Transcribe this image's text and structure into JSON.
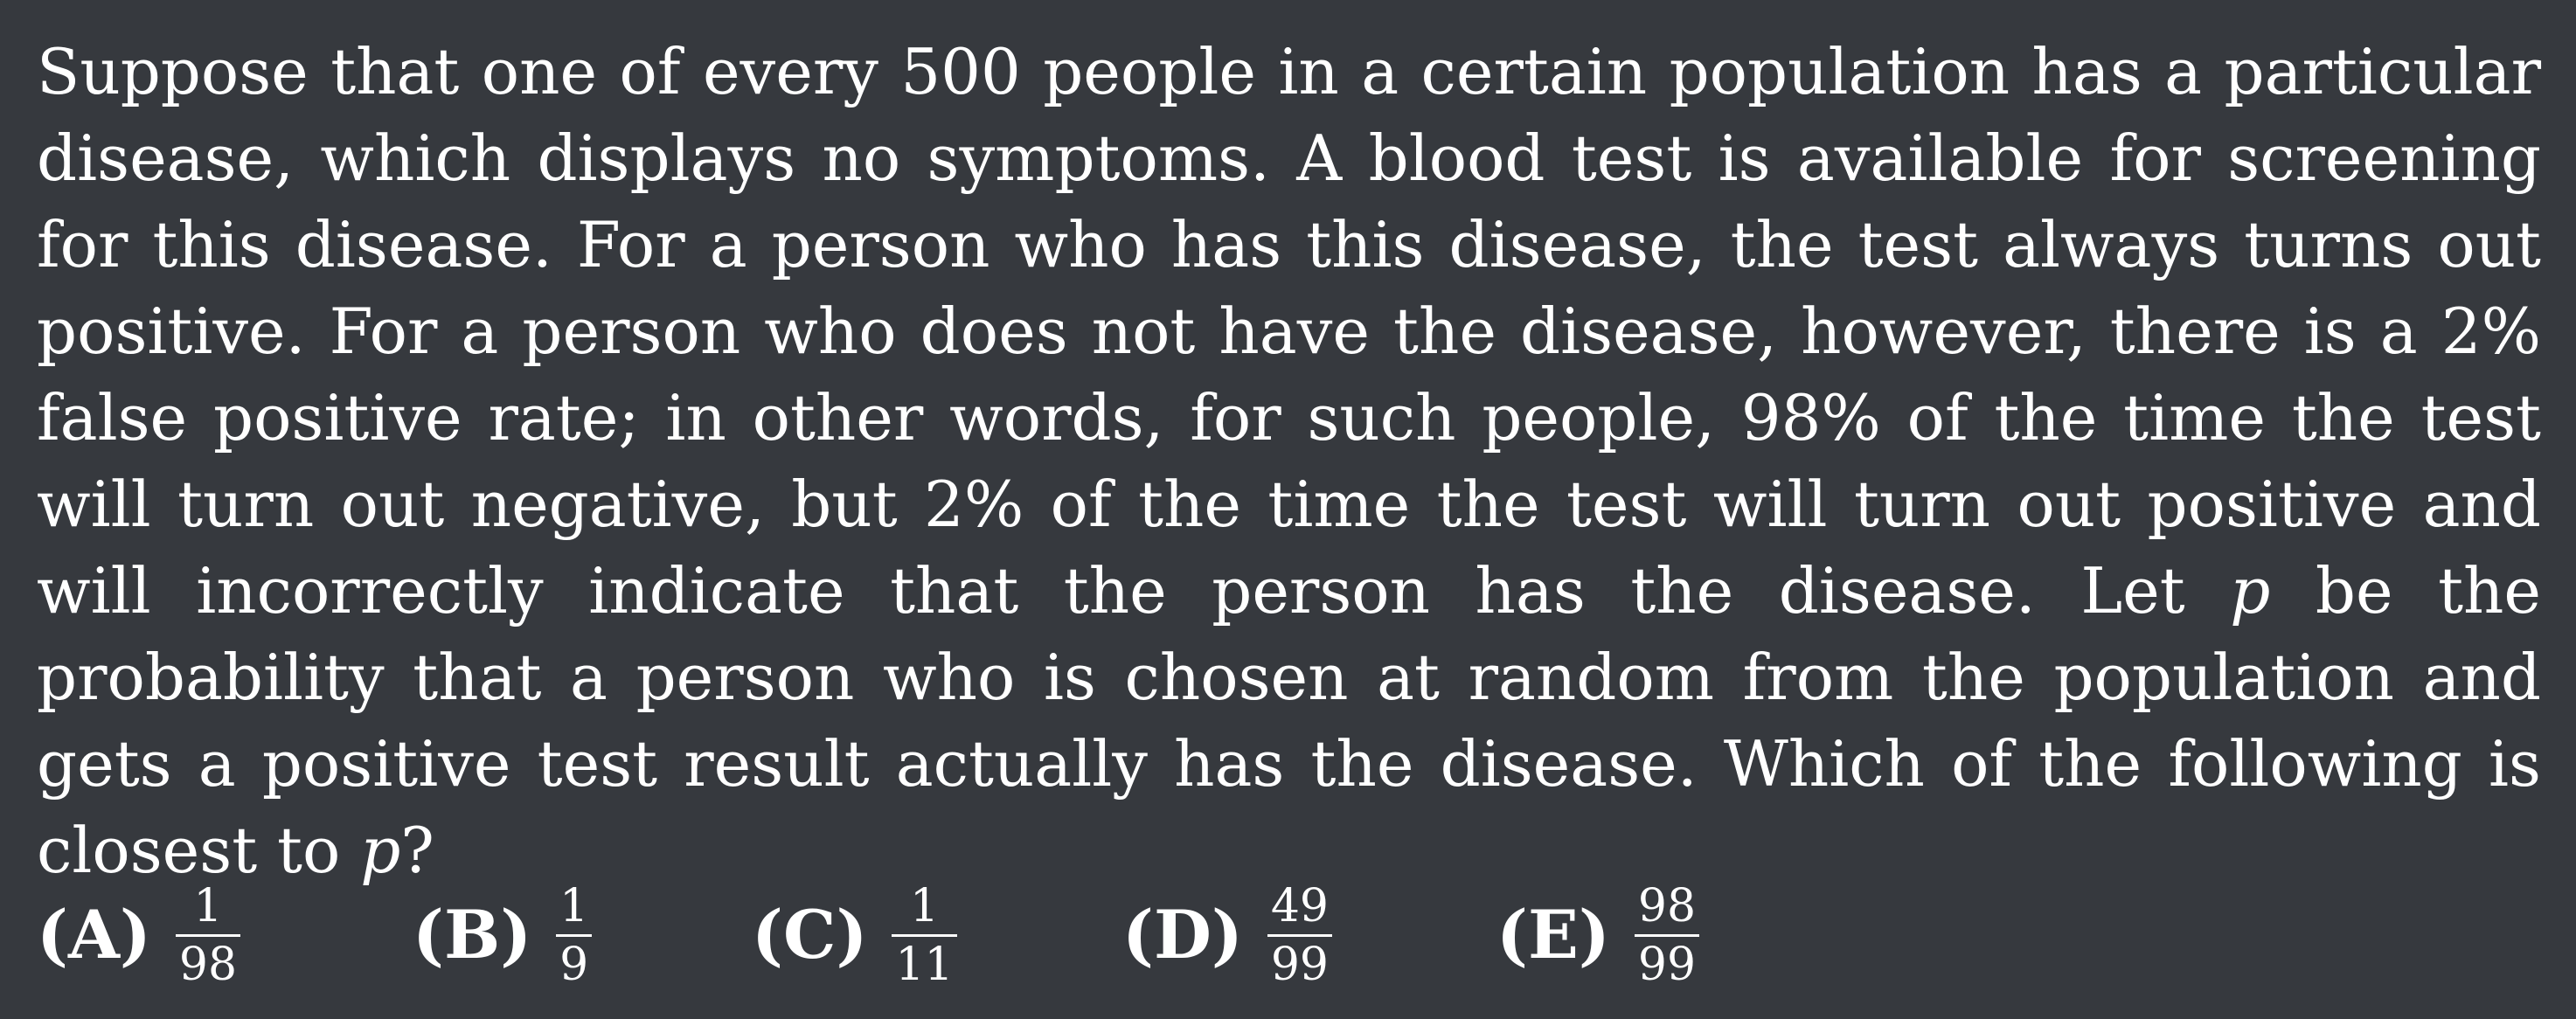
{
  "problem": {
    "text_part_1": "Suppose that one of every 500 people in a certain population has a particular disease, which displays no symptoms. A blood test is available for screening for this disease. For a person who has this disease, the test always turns out positive. For a person who does not have the disease, however, there is a 2% false positive rate; in other words, for such people, 98% of the time the test will turn out negative, but 2% of the time the test will turn out positive and will incorrectly indicate that the person has the disease. Let ",
    "variable": "p",
    "text_part_2": " be the probability that a person who is chosen at random from the population and gets a positive test result actually has the disease. Which of the following is closest to ",
    "variable_2": "p",
    "text_part_3": "?"
  },
  "choices": [
    {
      "label": "(A)",
      "numerator": "1",
      "denominator": "98"
    },
    {
      "label": "(B)",
      "numerator": "1",
      "denominator": "9"
    },
    {
      "label": "(C)",
      "numerator": "1",
      "denominator": "11"
    },
    {
      "label": "(D)",
      "numerator": "49",
      "denominator": "99"
    },
    {
      "label": "(E)",
      "numerator": "98",
      "denominator": "99"
    }
  ]
}
